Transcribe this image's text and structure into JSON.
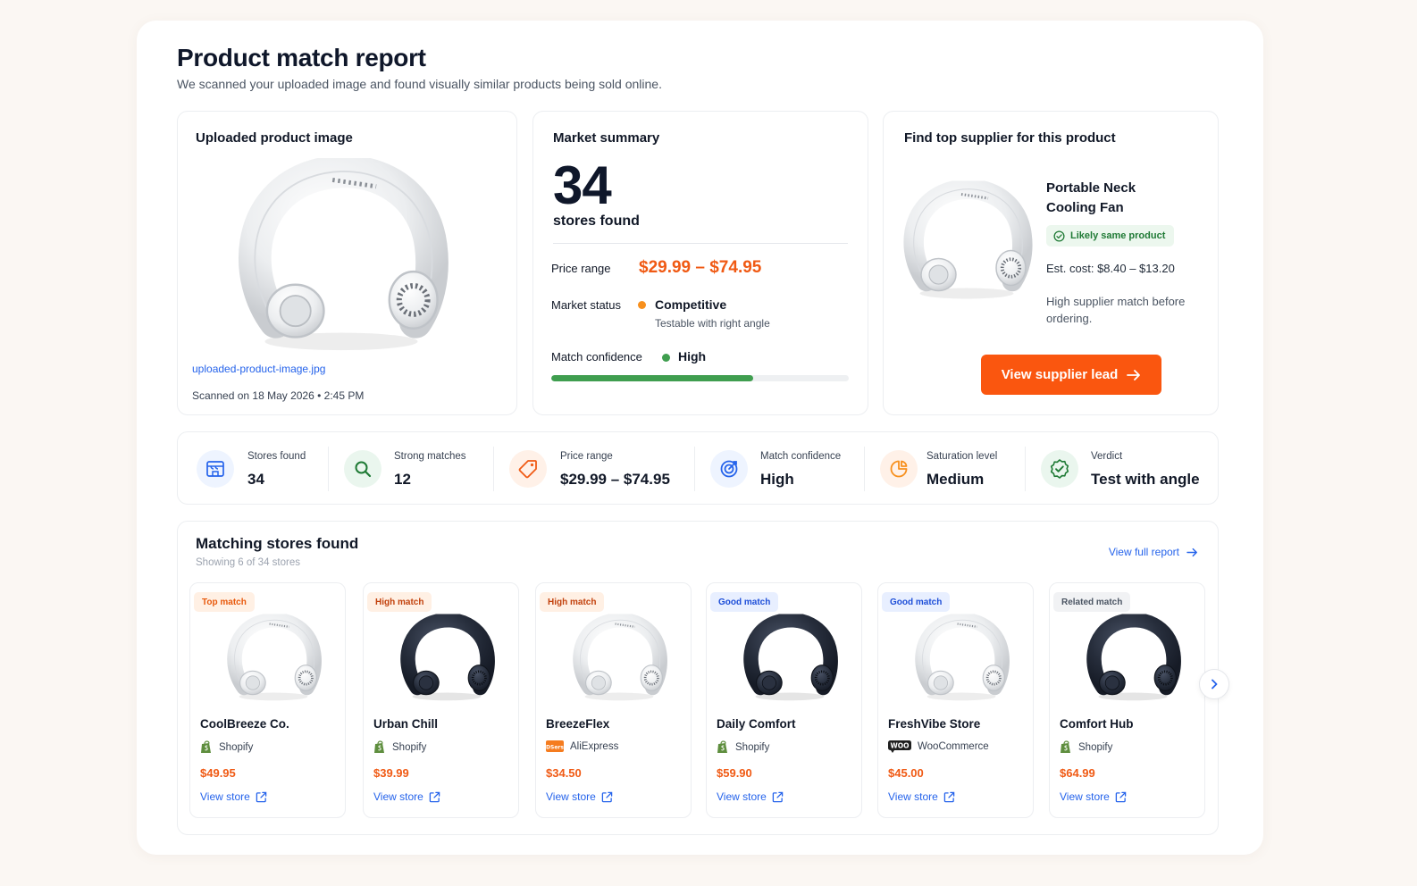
{
  "header": {
    "title": "Product match report",
    "subtitle": "We scanned your uploaded image and found visually similar products being sold online."
  },
  "upload": {
    "title": "Uploaded product image",
    "filename": "uploaded-product-image.jpg",
    "scanned": "Scanned on 18 May 2026 • 2:45 PM"
  },
  "market": {
    "title": "Market summary",
    "stores_count": "34",
    "stores_label": "stores found",
    "price_label": "Price range",
    "price_value": "$29.99 – $74.95",
    "status_label": "Market status",
    "status_value": "Competitive",
    "status_sub": "Testable with right angle",
    "status_color": "#f7901e",
    "confidence_label": "Match confidence",
    "confidence_value": "High",
    "confidence_color": "#3f9e4f",
    "confidence_level": 0.68
  },
  "supplier": {
    "title": "Find top supplier for this product",
    "product_name": "Portable Neck Cooling Fan",
    "badge": "Likely same product",
    "cost": "Est. cost: $8.40 – $13.20",
    "note": "High supplier match before ordering.",
    "button": "View supplier lead"
  },
  "stats": [
    {
      "label": "Stores found",
      "value": "34",
      "icon": "store-icon",
      "bg": "#eef4ff",
      "fg": "#2563eb"
    },
    {
      "label": "Strong matches",
      "value": "12",
      "icon": "search-icon",
      "bg": "#eaf6ee",
      "fg": "#1f7a35"
    },
    {
      "label": "Price range",
      "value": "$29.99 – $74.95",
      "icon": "tag-icon",
      "bg": "#fff1e8",
      "fg": "#f05a14"
    },
    {
      "label": "Match confidence",
      "value": "High",
      "icon": "target-icon",
      "bg": "#eef4ff",
      "fg": "#2563eb"
    },
    {
      "label": "Saturation level",
      "value": "Medium",
      "icon": "pie-chart-icon",
      "bg": "#fff1e8",
      "fg": "#f7901e"
    },
    {
      "label": "Verdict",
      "value": "Test with angle",
      "icon": "verified-check-icon",
      "bg": "#eaf6ee",
      "fg": "#1f7a35"
    }
  ],
  "stores": {
    "title": "Matching stores found",
    "subtitle": "Showing 6 of 34 stores",
    "view_full": "View full report",
    "view_store_label": "View store",
    "items": [
      {
        "badge": "Top match",
        "badge_bg": "#fff0e4",
        "badge_fg": "#e8590c",
        "name": "CoolBreeze Co.",
        "platform": "Shopify",
        "platform_icon": "shopify-icon",
        "price": "$49.95",
        "color": "white"
      },
      {
        "badge": "High match",
        "badge_bg": "#fff0e4",
        "badge_fg": "#c2410c",
        "name": "Urban Chill",
        "platform": "Shopify",
        "platform_icon": "shopify-icon",
        "price": "$39.99",
        "color": "black"
      },
      {
        "badge": "High match",
        "badge_bg": "#fff0e4",
        "badge_fg": "#c2410c",
        "name": "BreezeFlex",
        "platform": "AliExpress",
        "platform_icon": "aliexpress-icon",
        "price": "$34.50",
        "color": "white"
      },
      {
        "badge": "Good match",
        "badge_bg": "#e8efff",
        "badge_fg": "#1d4ed8",
        "name": "Daily Comfort",
        "platform": "Shopify",
        "platform_icon": "shopify-icon",
        "price": "$59.90",
        "color": "black"
      },
      {
        "badge": "Good match",
        "badge_bg": "#e8efff",
        "badge_fg": "#1d4ed8",
        "name": "FreshVibe Store",
        "platform": "WooCommerce",
        "platform_icon": "woocommerce-icon",
        "price": "$45.00",
        "color": "white"
      },
      {
        "badge": "Related match",
        "badge_bg": "#f1f2f4",
        "badge_fg": "#4b5563",
        "name": "Comfort Hub",
        "platform": "Shopify",
        "platform_icon": "shopify-icon",
        "price": "$64.99",
        "color": "black"
      }
    ]
  }
}
